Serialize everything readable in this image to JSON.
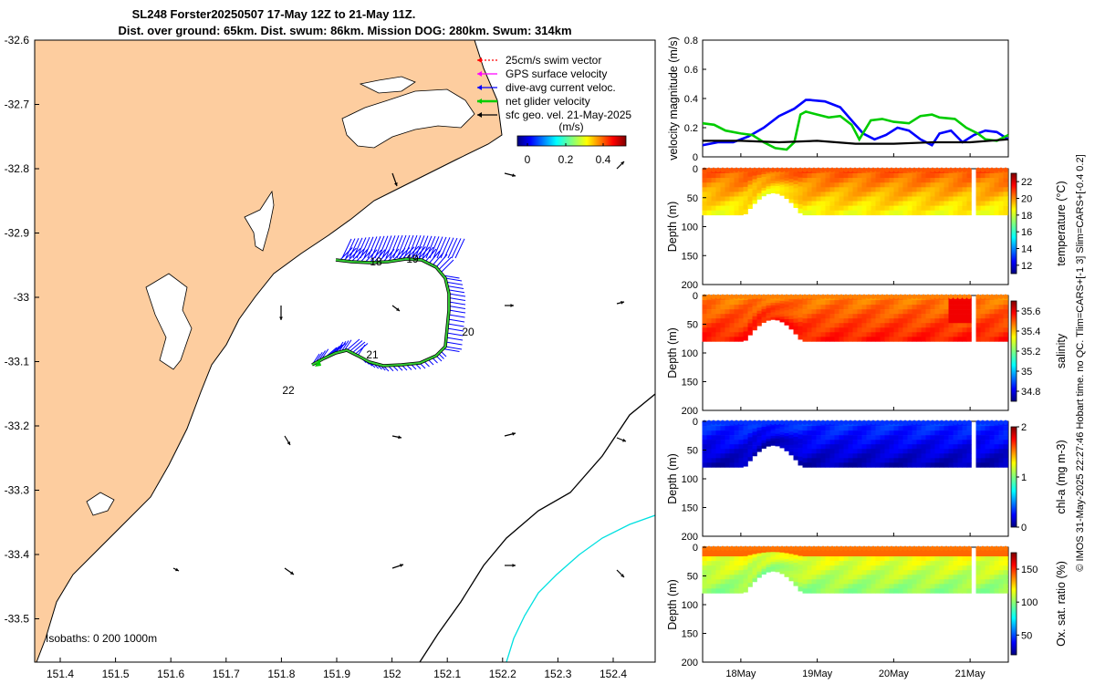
{
  "title_line1": "SL248 Forster20250507 17-May 12Z to 21-May 11Z.",
  "title_line2": "Dist. over ground: 65km. Dist. swum: 86km. Mission DOG: 280km. Swum: 314km",
  "map": {
    "lon_ticks": [
      "151.4",
      "151.5",
      "151.6",
      "151.7",
      "151.8",
      "151.9",
      "152",
      "152.1",
      "152.2",
      "152.3",
      "152.4"
    ],
    "lat_ticks": [
      "-32.6",
      "-32.7",
      "-32.8",
      "-32.9",
      "-33",
      "-33.1",
      "-33.2",
      "-33.3",
      "-33.4",
      "-33.5"
    ],
    "isobath_text": "Isobaths: 0   200  1000m",
    "day_labels": [
      "18",
      "19",
      "20",
      "21",
      "22"
    ],
    "legend": [
      {
        "text": "25cm/s swim vector",
        "color": "#ff0000"
      },
      {
        "text": "GPS surface velocity",
        "color": "#ff00ff"
      },
      {
        "text": "dive-avg current veloc.",
        "color": "#0000ff"
      },
      {
        "text": "net glider velocity",
        "color": "#00cc00"
      },
      {
        "text": "sfc geo. vel. 21-May-2025",
        "color": "#000000"
      }
    ],
    "colorbar_unit": "(m/s)",
    "colorbar_ticks": [
      "0",
      "0.2",
      "0.4"
    ],
    "colors": {
      "land": "#fdcd9f",
      "coast": "#000000",
      "isobath1000": "#00e0e0",
      "track": "#00cc00"
    }
  },
  "chart_data": [
    {
      "type": "line",
      "title": "",
      "ylabel": "velocity magnitude (m/s)",
      "ylim": [
        0,
        0.8
      ],
      "yticks": [
        "0",
        "0.2",
        "0.4",
        "0.6",
        "0.8"
      ],
      "x_days": [
        17.5,
        21.5
      ],
      "series": [
        {
          "name": "dive-avg current",
          "color": "#0000ff",
          "x": [
            17.5,
            17.7,
            17.9,
            18.1,
            18.3,
            18.5,
            18.7,
            18.85,
            18.9,
            19.1,
            19.2,
            19.3,
            19.45,
            19.6,
            19.75,
            19.9,
            20.05,
            20.2,
            20.35,
            20.5,
            20.6,
            20.75,
            20.9,
            21.05,
            21.2,
            21.35,
            21.5
          ],
          "y": [
            0.08,
            0.1,
            0.1,
            0.14,
            0.2,
            0.28,
            0.33,
            0.39,
            0.39,
            0.38,
            0.36,
            0.34,
            0.25,
            0.16,
            0.12,
            0.15,
            0.2,
            0.18,
            0.12,
            0.08,
            0.16,
            0.18,
            0.1,
            0.15,
            0.18,
            0.17,
            0.12
          ]
        },
        {
          "name": "net glider velocity",
          "color": "#00cc00",
          "x": [
            17.5,
            17.65,
            17.8,
            18.0,
            18.15,
            18.3,
            18.45,
            18.6,
            18.7,
            18.78,
            18.85,
            19.0,
            19.15,
            19.3,
            19.45,
            19.55,
            19.7,
            19.85,
            20.0,
            20.2,
            20.35,
            20.5,
            20.6,
            20.8,
            20.95,
            21.1,
            21.2,
            21.35,
            21.5
          ],
          "y": [
            0.23,
            0.22,
            0.18,
            0.16,
            0.15,
            0.1,
            0.06,
            0.05,
            0.1,
            0.29,
            0.31,
            0.29,
            0.27,
            0.28,
            0.22,
            0.12,
            0.25,
            0.26,
            0.24,
            0.23,
            0.28,
            0.29,
            0.27,
            0.26,
            0.2,
            0.16,
            0.12,
            0.11,
            0.15
          ]
        },
        {
          "name": "sfc geo. vel.",
          "color": "#000000",
          "x": [
            17.5,
            18.0,
            18.5,
            19.0,
            19.5,
            20.0,
            20.5,
            21.0,
            21.5
          ],
          "y": [
            0.11,
            0.11,
            0.1,
            0.11,
            0.09,
            0.09,
            0.1,
            0.1,
            0.12
          ]
        }
      ]
    },
    {
      "type": "heatmap",
      "quantity": "temperature",
      "ylabel": "Depth (m)",
      "clabel": "temperature (°C)",
      "ylim": [
        0,
        200
      ],
      "yticks": [
        "0",
        "50",
        "100",
        "150",
        "200"
      ],
      "cticks": [
        "12",
        "14",
        "16",
        "18",
        "20",
        "22"
      ],
      "crange": [
        11,
        23
      ],
      "surface_value": 20.5,
      "bottom_value": 18.5
    },
    {
      "type": "heatmap",
      "quantity": "salinity",
      "ylabel": "Depth (m)",
      "clabel": "salinity",
      "ylim": [
        0,
        200
      ],
      "yticks": [
        "0",
        "50",
        "100",
        "150",
        "200"
      ],
      "cticks": [
        "34.8",
        "35",
        "35.2",
        "35.4",
        "35.6"
      ],
      "crange": [
        34.7,
        35.7
      ],
      "surface_value": 35.45,
      "bottom_value": 35.55
    },
    {
      "type": "heatmap",
      "quantity": "chl-a",
      "ylabel": "Depth (m)",
      "clabel": "chl-a (mg m-3)",
      "ylim": [
        0,
        200
      ],
      "yticks": [
        "0",
        "50",
        "100",
        "150",
        "200"
      ],
      "cticks": [
        "0",
        "1",
        "2"
      ],
      "crange": [
        0,
        2
      ],
      "surface_value": 0.35,
      "bottom_value": 0.1
    },
    {
      "type": "heatmap",
      "quantity": "oxygen",
      "ylabel": "Depth (m)",
      "clabel": "Ox. sat. ratio (%)",
      "ylim": [
        0,
        200
      ],
      "yticks": [
        "0",
        "50",
        "100",
        "150",
        "200"
      ],
      "cticks": [
        "50",
        "100",
        "150"
      ],
      "crange": [
        20,
        175
      ],
      "surface_value": 118,
      "bottom_value": 100
    }
  ],
  "time_ticks": [
    "18May",
    "19May",
    "20May",
    "21May"
  ],
  "side_note": "© IMOS 31-May-2025 22:27:46 Hobart time. no QC. Tlim=CARS+[-1 3] Slim=CARS+[-0.4 0.2]"
}
